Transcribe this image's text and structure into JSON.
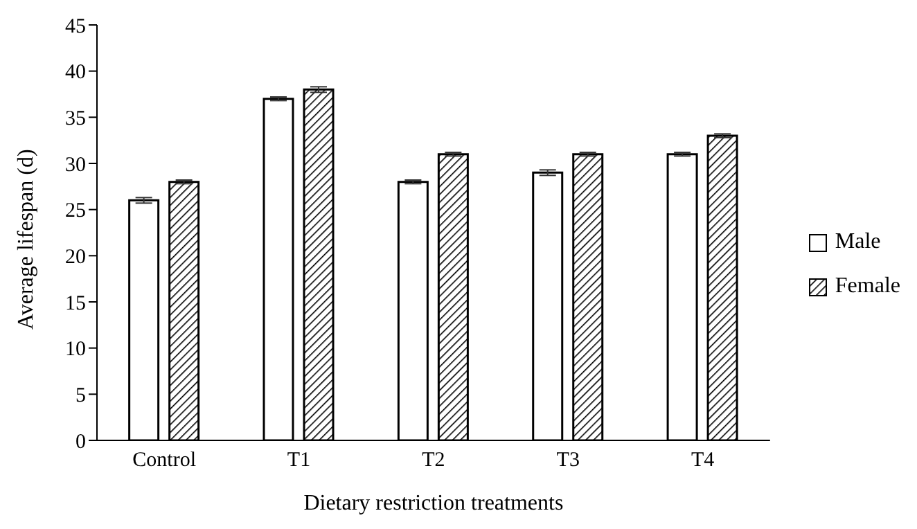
{
  "chart_data": {
    "type": "bar",
    "xlabel": "Dietary restriction treatments",
    "ylabel": "Average lifespan (d)",
    "categories": [
      "Control",
      "T1",
      "T2",
      "T3",
      "T4"
    ],
    "series": [
      {
        "name": "Male",
        "color": "#ffffff",
        "values": [
          26,
          37,
          28,
          29,
          31
        ],
        "errors": [
          0.3,
          0.2,
          0.2,
          0.3,
          0.2
        ]
      },
      {
        "name": "Female",
        "color": "#000000",
        "values": [
          28,
          38,
          31,
          31,
          33
        ],
        "errors": [
          0.2,
          0.3,
          0.2,
          0.2,
          0.2
        ]
      }
    ],
    "ylim": [
      0,
      45
    ],
    "yticks": [
      0,
      5,
      10,
      15,
      20,
      25,
      30,
      35,
      40,
      45
    ],
    "legend": "right"
  }
}
